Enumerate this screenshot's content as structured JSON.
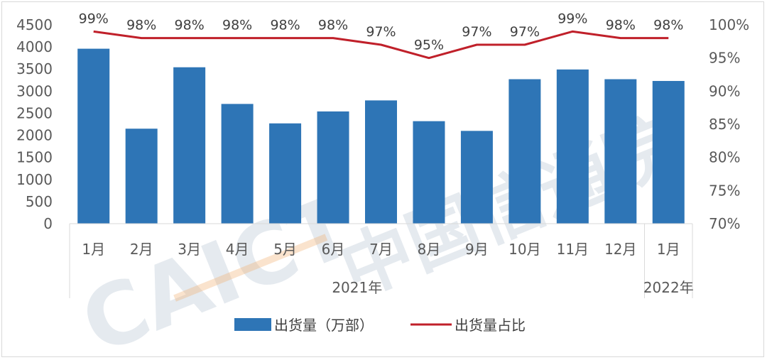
{
  "chart_data": {
    "type": "bar",
    "categories": [
      "1月",
      "2月",
      "3月",
      "4月",
      "5月",
      "6月",
      "7月",
      "8月",
      "9月",
      "10月",
      "11月",
      "12月",
      "1月"
    ],
    "groups": [
      {
        "label": "2021年",
        "start": 0,
        "end": 11
      },
      {
        "label": "2022年",
        "start": 12,
        "end": 12
      }
    ],
    "series": [
      {
        "name": "出货量（万部）",
        "type": "bar",
        "axis": "left",
        "values": [
          3960,
          2150,
          3540,
          2710,
          2270,
          2540,
          2790,
          2320,
          2100,
          3270,
          3490,
          3270,
          3230
        ],
        "color": "#2e75b6"
      },
      {
        "name": "出货量占比",
        "type": "line",
        "axis": "right",
        "values": [
          99,
          98,
          98,
          98,
          98,
          98,
          97,
          95,
          97,
          97,
          99,
          98,
          98
        ],
        "data_labels": [
          "99%",
          "98%",
          "98%",
          "98%",
          "98%",
          "98%",
          "97%",
          "95%",
          "97%",
          "97%",
          "99%",
          "98%",
          "98%"
        ],
        "color": "#c0202a"
      }
    ],
    "y_left": {
      "min": 0,
      "max": 4500,
      "step": 500,
      "ticks": [
        "0",
        "500",
        "1000",
        "1500",
        "2000",
        "2500",
        "3000",
        "3500",
        "4000",
        "4500"
      ]
    },
    "y_right": {
      "min": 70,
      "max": 100,
      "step": 5,
      "ticks": [
        "70%",
        "75%",
        "80%",
        "85%",
        "90%",
        "95%",
        "100%"
      ]
    },
    "legend_position": "bottom",
    "grid": false
  },
  "watermark": {
    "latin": "CAICT",
    "cjk": "中国信通院",
    "color": "#8aa0b8",
    "accent": "#f0b070"
  }
}
